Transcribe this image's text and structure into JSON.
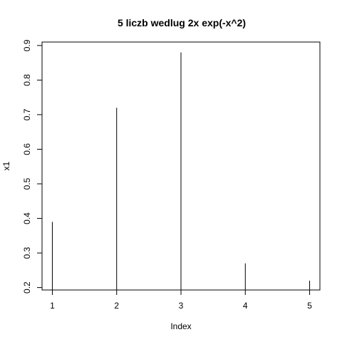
{
  "chart_data": {
    "type": "bar",
    "plot_style": "histogram-lines",
    "title": "5 liczb wedlug 2x exp(-x^2)",
    "xlabel": "Index",
    "ylabel": "x1",
    "x": [
      1,
      2,
      3,
      4,
      5
    ],
    "values": [
      0.39,
      0.72,
      0.88,
      0.27,
      0.22
    ],
    "xlim": [
      0.84,
      5.16
    ],
    "ylim": [
      0.193,
      0.91
    ],
    "x_ticks": [
      1,
      2,
      3,
      4,
      5
    ],
    "y_ticks": [
      0.2,
      0.3,
      0.4,
      0.5,
      0.6,
      0.7,
      0.8,
      0.9
    ],
    "y_tick_labels": [
      "0.2",
      "0.3",
      "0.4",
      "0.5",
      "0.6",
      "0.7",
      "0.8",
      "0.9"
    ],
    "grid": false,
    "legend": "none",
    "colors": {
      "line": "#000000",
      "background": "#ffffff"
    }
  }
}
